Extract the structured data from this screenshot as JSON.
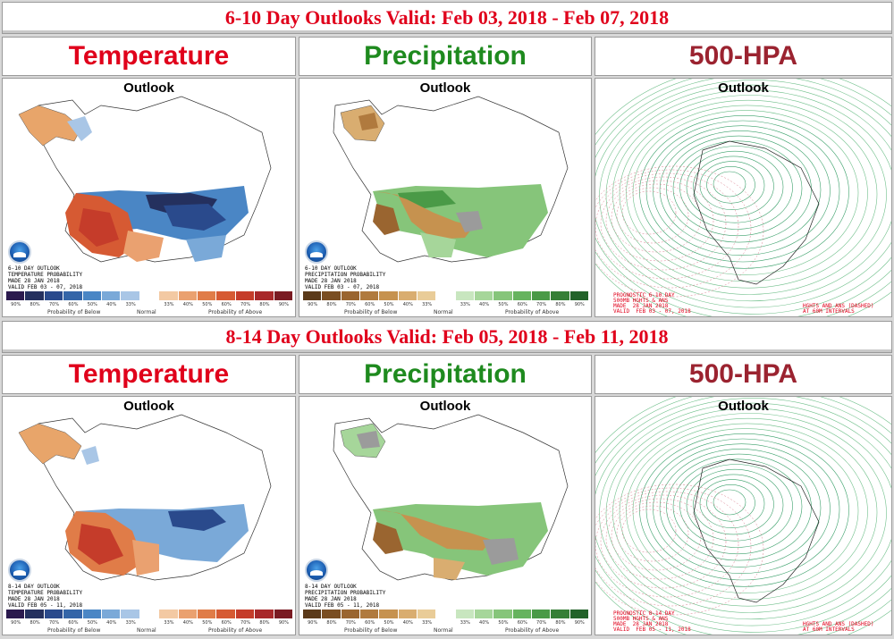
{
  "rows": [
    {
      "banner": "6-10 Day Outlooks Valid: Feb 03, 2018 - Feb 07, 2018",
      "headers": {
        "temperature": "Temperature",
        "precipitation": "Precipitation",
        "hpa": "500-HPA"
      },
      "outlook_label": "Outlook",
      "temp_info": [
        "6-10 DAY OUTLOOK",
        "TEMPERATURE PROBABILITY",
        "MADE  28 JAN 2018",
        "VALID  FEB 03 - 07, 2018"
      ],
      "prec_info": [
        "6-10 DAY OUTLOOK",
        "PRECIPITATION PROBABILITY",
        "MADE  28 JAN 2018",
        "VALID  FEB 03 - 07, 2018"
      ],
      "hpa_info_left": [
        "PROGNOSTIC 6-10 DAY",
        "500MB HGHTS & ANS",
        "MADE  28 JAN 2018",
        "VALID  FEB 03 - 07, 2018"
      ],
      "hpa_info_right": [
        "HGHTS AND ANS (DASHED)",
        "AT 60M INTERVALS"
      ]
    },
    {
      "banner": "8-14 Day Outlooks Valid: Feb 05, 2018 - Feb 11, 2018",
      "headers": {
        "temperature": "Temperature",
        "precipitation": "Precipitation",
        "hpa": "500-HPA"
      },
      "outlook_label": "Outlook",
      "temp_info": [
        "8-14 DAY OUTLOOK",
        "TEMPERATURE PROBABILITY",
        "MADE  28 JAN 2018",
        "VALID  FEB 05 - 11, 2018"
      ],
      "prec_info": [
        "8-14 DAY OUTLOOK",
        "PRECIPITATION PROBABILITY",
        "MADE  28 JAN 2018",
        "VALID  FEB 05 - 11, 2018"
      ],
      "hpa_info_left": [
        "PROGNOSTIC 8-14 DAY",
        "500MB HGHTS & ANS",
        "MADE  28 JAN 2018",
        "VALID  FEB 05 - 11, 2018"
      ],
      "hpa_info_right": [
        "HGHTS AND ANS (DASHED)",
        "AT 60M INTERVALS"
      ]
    }
  ],
  "legend": {
    "ticks": [
      "90%",
      "80%",
      "70%",
      "60%",
      "50%",
      "40%",
      "33%",
      "",
      "33%",
      "40%",
      "50%",
      "60%",
      "70%",
      "80%",
      "90%"
    ],
    "below_caption": "Probability of Below",
    "normal_caption": "Normal",
    "above_caption": "Probability of Above",
    "temp_colors": [
      "#2b1a4e",
      "#24305e",
      "#2a4a8c",
      "#3465a8",
      "#4a86c5",
      "#7aa9d8",
      "#a9c6e6",
      "#ffffff",
      "#f3c9a3",
      "#eaa170",
      "#e07c48",
      "#d65a33",
      "#c53c2a",
      "#a8282a",
      "#7a1a22"
    ],
    "prec_colors": [
      "#5b3a1a",
      "#7a4e22",
      "#9a6530",
      "#b07a3e",
      "#c6924f",
      "#d9ad70",
      "#e9cc98",
      "#ffffff",
      "#c8e6bf",
      "#a6d69a",
      "#86c57a",
      "#66b35e",
      "#4a9a47",
      "#357f36",
      "#23632a"
    ]
  },
  "colors": {
    "banner_text": "#e0001b",
    "temperature_header": "#e0001b",
    "precipitation_header": "#1e8a1e",
    "hpa_header": "#9b2330"
  }
}
